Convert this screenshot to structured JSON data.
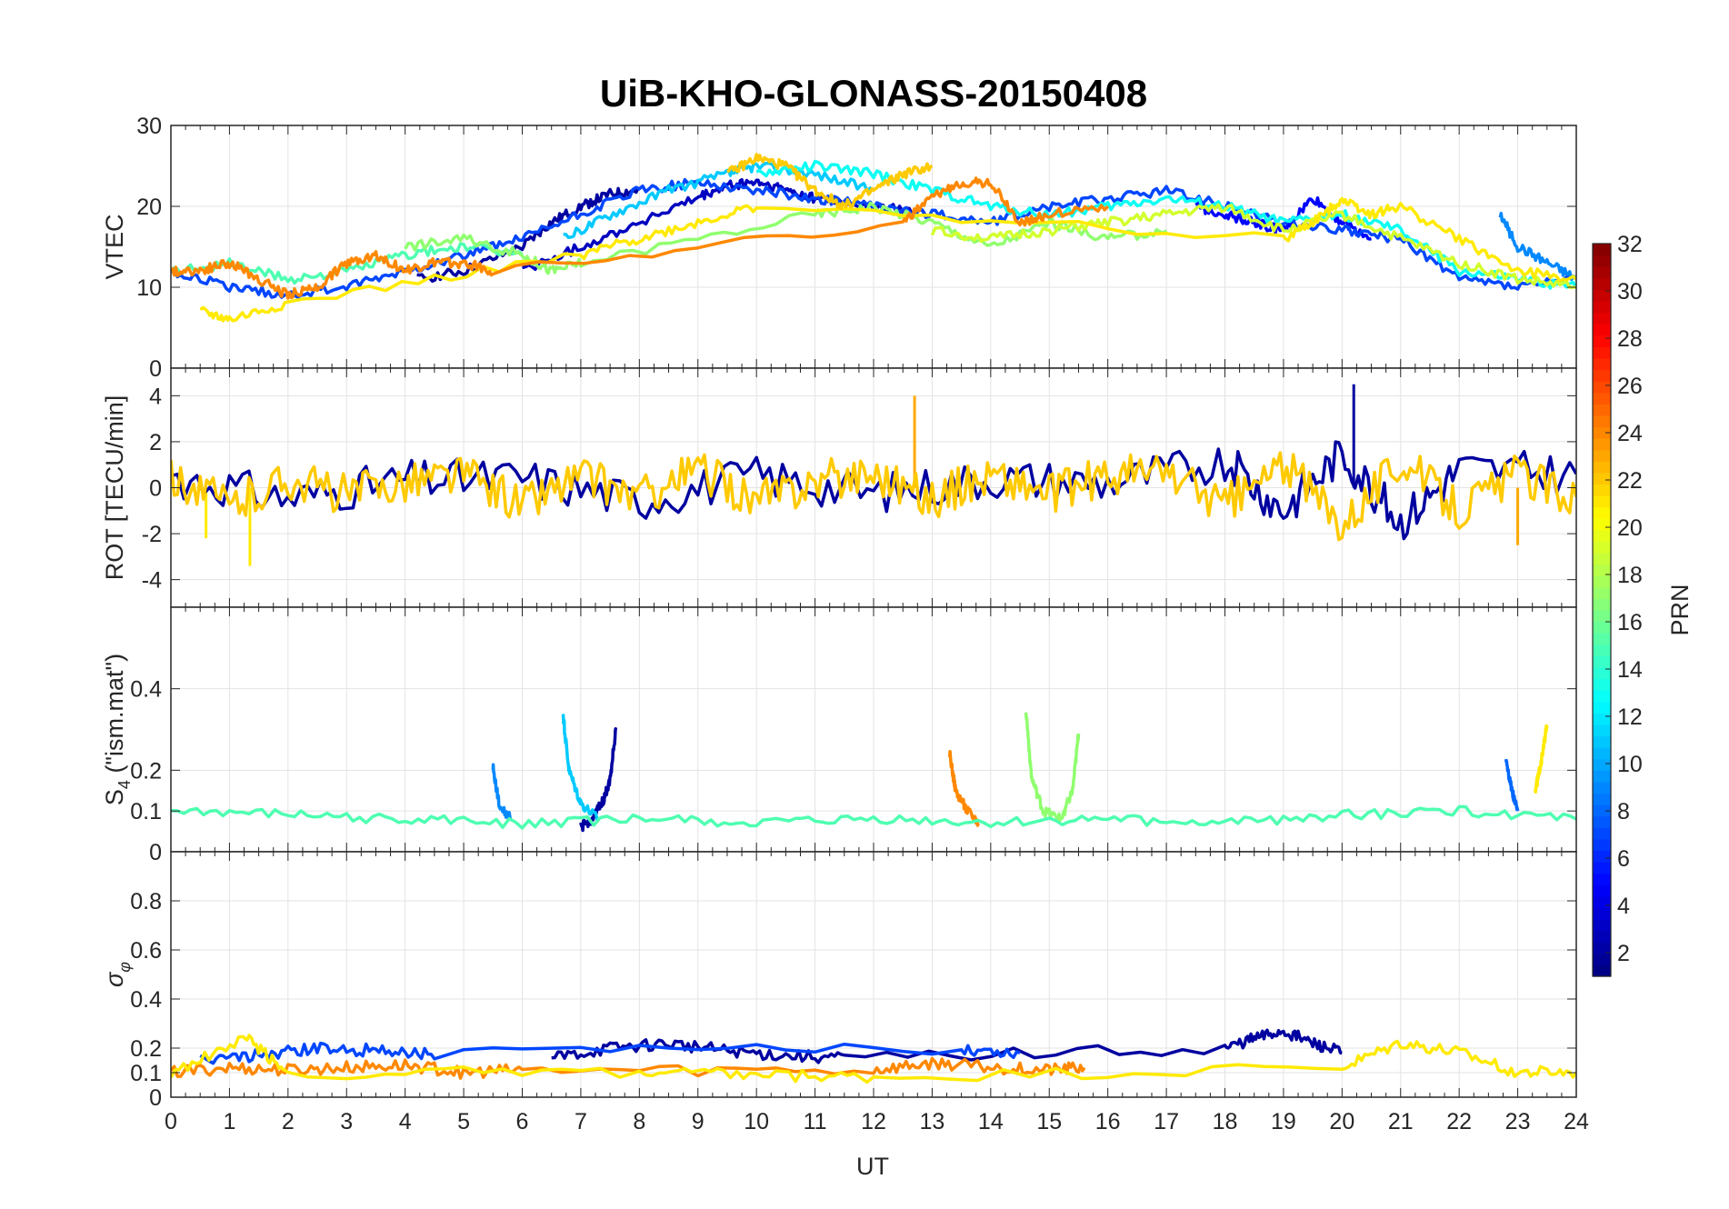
{
  "chart_data": {
    "type": "line",
    "title": "UiB-KHO-GLONASS-20150408",
    "xlabel": "UT",
    "xlim": [
      0,
      24
    ],
    "x_ticks": [
      "0",
      "1",
      "2",
      "3",
      "4",
      "5",
      "6",
      "7",
      "8",
      "9",
      "10",
      "11",
      "12",
      "13",
      "14",
      "15",
      "16",
      "17",
      "18",
      "19",
      "20",
      "21",
      "22",
      "23",
      "24"
    ],
    "panels": [
      {
        "ylabel": "VTEC",
        "ylim": [
          0,
          30
        ],
        "y_ticks": [
          "0",
          "10",
          "20",
          "30"
        ],
        "y_tick_values": [
          0,
          10,
          20,
          30
        ],
        "grid": true,
        "series": [
          {
            "name": "PRN 2",
            "prn": 2,
            "x": [
              4.2,
              5.0,
              6.0,
              6.5,
              7.0,
              7.5,
              8.0
            ],
            "y": [
              11,
              12,
              15,
              18,
              20,
              21.5,
              22
            ]
          },
          {
            "name": "PRN 3",
            "prn": 3,
            "x": [
              6.0,
              7.0,
              8.0,
              9.0,
              9.5,
              10.0,
              10.5,
              11.0,
              12.0,
              13.0
            ],
            "y": [
              12,
              15,
              18,
              21,
              22.5,
              23,
              22,
              21,
              20,
              19
            ]
          },
          {
            "name": "PRN 5",
            "prn": 5,
            "x": [
              17.5,
              18.0,
              18.5,
              19.0,
              19.5,
              20.0,
              20.5
            ],
            "y": [
              20,
              19,
              18,
              17,
              21,
              18,
              16
            ]
          },
          {
            "name": "PRN 7",
            "prn": 7,
            "x": [
              0,
              1,
              2,
              3,
              4,
              5,
              6,
              7,
              8,
              9,
              10,
              11,
              12,
              13,
              14,
              15,
              16,
              17,
              18,
              19,
              20,
              21,
              22,
              23,
              24
            ],
            "y": [
              12,
              10,
              9,
              10,
              12,
              14,
              16,
              19,
              22,
              23,
              22,
              21,
              20,
              19,
              18,
              20,
              21,
              22,
              20,
              18,
              17,
              16,
              11,
              10,
              11
            ]
          },
          {
            "name": "PRN 9",
            "prn": 9,
            "x": [
              22.7,
              23.0,
              23.5,
              24.0
            ],
            "y": [
              19,
              15,
              13,
              11
            ]
          },
          {
            "name": "PRN 11",
            "prn": 11,
            "x": [
              6.7,
              7.5,
              8.5,
              9.5,
              10.0,
              11.0,
              12.0
            ],
            "y": [
              16,
              19,
              22,
              24,
              25,
              24,
              22
            ]
          },
          {
            "name": "PRN 13",
            "prn": 13,
            "x": [
              10.0,
              11.0,
              12.0,
              13.0,
              14.0,
              15.0,
              16.0,
              17.0,
              18.0,
              19.0,
              20.0,
              21.0,
              22.0,
              23.0,
              24.0
            ],
            "y": [
              24,
              25,
              24,
              22,
              20,
              19,
              20,
              21,
              20,
              18,
              19,
              17,
              12,
              11,
              10
            ]
          },
          {
            "name": "PRN 15",
            "prn": 15,
            "x": [
              0,
              1,
              2,
              3,
              4,
              5,
              6
            ],
            "y": [
              12,
              13,
              11,
              12,
              14,
              15,
              14
            ]
          },
          {
            "name": "PRN 17",
            "prn": 17,
            "x": [
              4.0,
              5.0,
              6.0,
              6.5,
              7.0,
              11.0,
              12.0,
              13.0,
              14.0,
              15.0,
              16.0,
              17.0
            ],
            "y": [
              15,
              16,
              14,
              12,
              13,
              19,
              20,
              18,
              15,
              18,
              16,
              17
            ]
          },
          {
            "name": "PRN 19",
            "prn": 19,
            "x": [
              13.0,
              14.0,
              15.0,
              16.0,
              17.0,
              18.0,
              19.0,
              20.0,
              21.0,
              22.0,
              23.0,
              24.0
            ],
            "y": [
              17,
              16,
              17,
              18,
              19,
              20,
              17,
              19,
              16,
              13,
              11,
              10
            ]
          },
          {
            "name": "PRN 21",
            "prn": 21,
            "x": [
              0.5,
              1.0,
              2.0,
              7.0,
              8.0,
              9.0,
              10.0,
              19.0,
              19.5,
              20.0,
              20.5,
              21.0,
              22.0,
              23.0,
              24.0
            ],
            "y": [
              7,
              6,
              8,
              14,
              16,
              18,
              20,
              16,
              18,
              21,
              19,
              20,
              16,
              12,
              11
            ]
          },
          {
            "name": "PRN 22",
            "prn": 22,
            "x": [
              9.5,
              10.0,
              10.5,
              11.0,
              11.5,
              12.0,
              12.5,
              13.0
            ],
            "y": [
              24,
              26,
              25,
              22,
              20,
              22,
              24,
              25
            ]
          },
          {
            "name": "PRN 24",
            "prn": 24,
            "x": [
              0,
              0.5,
              1.0,
              1.5,
              2.0,
              2.5,
              3.0,
              3.5,
              4.0,
              4.5,
              5.0,
              5.5,
              12.5,
              13.0,
              13.5,
              14.0,
              14.5,
              15.0,
              16.0
            ],
            "y": [
              12,
              12,
              13,
              11,
              9,
              10,
              13,
              14,
              12,
              13,
              13,
              12,
              18,
              21,
              23,
              23,
              18,
              19,
              20
            ]
          }
        ]
      },
      {
        "ylabel": "ROT [TECU/min]",
        "ylim": [
          -5.2,
          5.2
        ],
        "y_ticks": [
          "-4",
          "-2",
          "0",
          "2",
          "4"
        ],
        "y_tick_values": [
          -4,
          -2,
          0,
          2,
          4
        ],
        "grid": true,
        "series": [
          {
            "name": "spikes",
            "x": [
              1.35,
              12.7,
              20.2,
              23.0,
              0.6
            ],
            "y": [
              -3.4,
              4.0,
              4.5,
              -2.5,
              -2.2
            ]
          },
          {
            "name": "PRN 2",
            "prn": 2,
            "x": [
              0,
              2,
              4,
              6,
              8,
              10,
              12,
              14,
              16,
              18,
              19,
              20,
              21,
              22,
              24
            ],
            "y": [
              0.5,
              -0.5,
              0.3,
              0.4,
              -0.6,
              0.5,
              -0.3,
              0.4,
              0.2,
              1.2,
              -1.0,
              1.5,
              -1.5,
              0.8,
              0.6
            ]
          },
          {
            "name": "PRN 22",
            "prn": 22,
            "x": [
              0,
              1,
              2,
              3,
              4,
              5,
              6,
              7,
              8,
              9,
              10,
              11,
              12,
              13,
              14,
              15,
              16,
              17,
              18,
              19,
              20,
              21,
              22,
              23,
              24
            ],
            "y": [
              0.5,
              -0.8,
              0.4,
              -0.3,
              0.3,
              0.6,
              -0.7,
              0.5,
              -0.4,
              0.8,
              -0.6,
              0.3,
              0.7,
              -0.5,
              0.6,
              -0.3,
              0.5,
              0.7,
              -0.8,
              1.0,
              -1.5,
              1.2,
              -0.9,
              0.6,
              -0.4
            ]
          }
        ]
      },
      {
        "ylabel": "S4 (\"ism.mat\")",
        "ylabel_main": "S",
        "ylabel_sub": "4",
        "ylabel_rest": " (\"ism.mat\")",
        "ylim": [
          0,
          0.6
        ],
        "y_ticks": [
          "0",
          "0.1",
          "0.2",
          "0.4"
        ],
        "y_tick_values": [
          0,
          0.1,
          0.2,
          0.4
        ],
        "grid": true,
        "series": [
          {
            "name": "PRN 2",
            "prn": 2,
            "x": [
              7.0,
              7.2,
              7.4,
              7.5,
              7.6
            ],
            "y": [
              0.06,
              0.08,
              0.13,
              0.18,
              0.3
            ]
          },
          {
            "name": "PRN 11",
            "prn": 11,
            "x": [
              6.7,
              6.8,
              7.0,
              7.3
            ],
            "y": [
              0.33,
              0.2,
              0.12,
              0.08
            ]
          },
          {
            "name": "PRN 9",
            "prn": 9,
            "x": [
              5.5,
              5.6,
              5.8
            ],
            "y": [
              0.21,
              0.12,
              0.08
            ]
          },
          {
            "name": "PRN 24",
            "prn": 24,
            "x": [
              13.3,
              13.4,
              13.6,
              13.8
            ],
            "y": [
              0.24,
              0.15,
              0.1,
              0.07
            ]
          },
          {
            "name": "PRN 17",
            "prn": 17,
            "x": [
              14.6,
              14.7,
              14.9,
              15.2,
              15.4,
              15.5
            ],
            "y": [
              0.35,
              0.18,
              0.1,
              0.08,
              0.15,
              0.29
            ]
          },
          {
            "name": "PRN 8",
            "prn": 8,
            "x": [
              22.8,
              22.9,
              23.0
            ],
            "y": [
              0.23,
              0.15,
              0.1
            ]
          },
          {
            "name": "PRN 21",
            "prn": 21,
            "x": [
              23.3,
              23.4,
              23.5
            ],
            "y": [
              0.15,
              0.22,
              0.31
            ]
          },
          {
            "name": "PRN 15",
            "prn": 15,
            "x": [
              0,
              2,
              4,
              6,
              8,
              10,
              12,
              14,
              16,
              18,
              20,
              22,
              24
            ],
            "y": [
              0.1,
              0.09,
              0.08,
              0.07,
              0.08,
              0.07,
              0.08,
              0.07,
              0.08,
              0.07,
              0.09,
              0.1,
              0.08
            ]
          }
        ]
      },
      {
        "ylabel": "σφ",
        "ylabel_main": "σ",
        "ylabel_sub": "φ",
        "ylim": [
          0,
          1
        ],
        "y_ticks": [
          "0",
          "0.1",
          "0.2",
          "0.4",
          "0.6",
          "0.8"
        ],
        "y_tick_values": [
          0,
          0.1,
          0.2,
          0.4,
          0.6,
          0.8
        ],
        "grid": true,
        "series": [
          {
            "name": "PRN 2",
            "prn": 2,
            "x": [
              6.5,
              7.5,
              8.5,
              9.5,
              10.5,
              11.5,
              18.0,
              18.5,
              19.0,
              19.5,
              20.0
            ],
            "y": [
              0.16,
              0.2,
              0.22,
              0.19,
              0.17,
              0.16,
              0.2,
              0.24,
              0.27,
              0.22,
              0.18
            ]
          },
          {
            "name": "PRN 7",
            "prn": 7,
            "x": [
              0.5,
              1.5,
              2.5,
              3.5,
              4.5,
              13.5,
              14.5
            ],
            "y": [
              0.15,
              0.17,
              0.2,
              0.19,
              0.18,
              0.2,
              0.18
            ]
          },
          {
            "name": "PRN 24",
            "prn": 24,
            "x": [
              0,
              1,
              2,
              3,
              4,
              5,
              6,
              12,
              13,
              14,
              15,
              15.6
            ],
            "y": [
              0.1,
              0.12,
              0.11,
              0.12,
              0.13,
              0.1,
              0.11,
              0.11,
              0.14,
              0.12,
              0.11,
              0.12
            ]
          },
          {
            "name": "PRN 21",
            "prn": 21,
            "x": [
              0,
              1.3,
              2,
              8,
              10,
              12,
              20,
              21,
              22,
              23,
              24
            ],
            "y": [
              0.1,
              0.24,
              0.1,
              0.1,
              0.09,
              0.08,
              0.12,
              0.22,
              0.18,
              0.1,
              0.1
            ]
          }
        ]
      }
    ],
    "colorbar": {
      "label": "PRN",
      "range": [
        1,
        32
      ],
      "ticks": [
        "2",
        "4",
        "6",
        "8",
        "10",
        "12",
        "14",
        "16",
        "18",
        "20",
        "22",
        "24",
        "26",
        "28",
        "30",
        "32"
      ],
      "tick_values": [
        2,
        4,
        6,
        8,
        10,
        12,
        14,
        16,
        18,
        20,
        22,
        24,
        26,
        28,
        30,
        32
      ],
      "colormap": "jet"
    }
  }
}
